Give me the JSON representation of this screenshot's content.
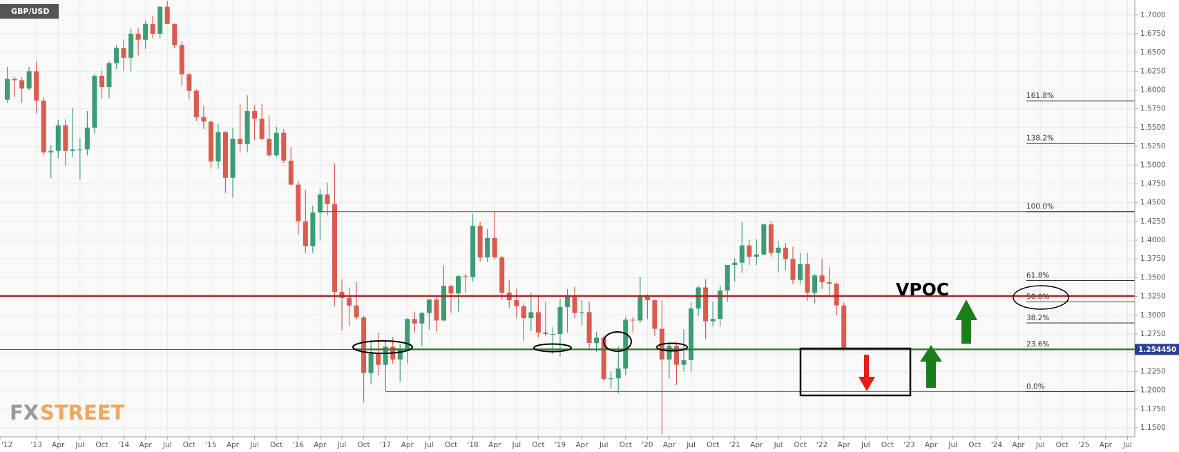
{
  "chart_data": {
    "type": "candlestick",
    "title": "GBP/USD",
    "watermark": {
      "first": "FX",
      "second": "STREET"
    },
    "x": [
      "2012-09",
      "2012-10",
      "2012-11",
      "2012-12",
      "2013-01",
      "2013-02",
      "2013-03",
      "2013-04",
      "2013-05",
      "2013-06",
      "2013-07",
      "2013-08",
      "2013-09",
      "2013-10",
      "2013-11",
      "2013-12",
      "2014-01",
      "2014-02",
      "2014-03",
      "2014-04",
      "2014-05",
      "2014-06",
      "2014-07",
      "2014-08",
      "2014-09",
      "2014-10",
      "2014-11",
      "2014-12",
      "2015-01",
      "2015-02",
      "2015-03",
      "2015-04",
      "2015-05",
      "2015-06",
      "2015-07",
      "2015-08",
      "2015-09",
      "2015-10",
      "2015-11",
      "2015-12",
      "2016-01",
      "2016-02",
      "2016-03",
      "2016-04",
      "2016-05",
      "2016-06",
      "2016-07",
      "2016-08",
      "2016-09",
      "2016-10",
      "2016-11",
      "2016-12",
      "2017-01",
      "2017-02",
      "2017-03",
      "2017-04",
      "2017-05",
      "2017-06",
      "2017-07",
      "2017-08",
      "2017-09",
      "2017-10",
      "2017-11",
      "2017-12",
      "2018-01",
      "2018-02",
      "2018-03",
      "2018-04",
      "2018-05",
      "2018-06",
      "2018-07",
      "2018-08",
      "2018-09",
      "2018-10",
      "2018-11",
      "2018-12",
      "2019-01",
      "2019-02",
      "2019-03",
      "2019-04",
      "2019-05",
      "2019-06",
      "2019-07",
      "2019-08",
      "2019-09",
      "2019-10",
      "2019-11",
      "2019-12",
      "2020-01",
      "2020-02",
      "2020-03",
      "2020-04",
      "2020-05",
      "2020-06",
      "2020-07",
      "2020-08",
      "2020-09",
      "2020-10",
      "2020-11",
      "2020-12",
      "2021-01",
      "2021-02",
      "2021-03",
      "2021-04",
      "2021-05",
      "2021-06",
      "2021-07",
      "2021-08",
      "2021-09",
      "2021-10",
      "2021-11",
      "2021-12",
      "2022-01",
      "2022-02",
      "2022-03",
      "2022-04"
    ],
    "open": [
      1.587,
      1.615,
      1.613,
      1.602,
      1.625,
      1.586,
      1.517,
      1.519,
      1.553,
      1.519,
      1.521,
      1.521,
      1.55,
      1.619,
      1.604,
      1.636,
      1.656,
      1.643,
      1.675,
      1.667,
      1.688,
      1.675,
      1.711,
      1.688,
      1.66,
      1.621,
      1.599,
      1.564,
      1.558,
      1.505,
      1.544,
      1.483,
      1.535,
      1.528,
      1.572,
      1.562,
      1.535,
      1.513,
      1.543,
      1.506,
      1.474,
      1.425,
      1.392,
      1.437,
      1.461,
      1.448,
      1.331,
      1.323,
      1.313,
      1.297,
      1.223,
      1.249,
      1.234,
      1.258,
      1.241,
      1.255,
      1.295,
      1.289,
      1.303,
      1.321,
      1.293,
      1.339,
      1.329,
      1.352,
      1.351,
      1.419,
      1.377,
      1.403,
      1.377,
      1.33,
      1.32,
      1.312,
      1.296,
      1.304,
      1.277,
      1.275,
      1.275,
      1.311,
      1.326,
      1.303,
      1.304,
      1.263,
      1.27,
      1.215,
      1.216,
      1.229,
      1.294,
      1.293,
      1.326,
      1.32,
      1.282,
      1.241,
      1.259,
      1.234,
      1.24,
      1.309,
      1.337,
      1.292,
      1.295,
      1.333,
      1.367,
      1.37,
      1.393,
      1.378,
      1.381,
      1.421,
      1.383,
      1.39,
      1.375,
      1.347,
      1.368,
      1.33,
      1.353,
      1.344,
      1.342,
      1.313
    ],
    "high": [
      1.631,
      1.618,
      1.617,
      1.631,
      1.638,
      1.59,
      1.527,
      1.56,
      1.561,
      1.576,
      1.536,
      1.572,
      1.621,
      1.626,
      1.638,
      1.66,
      1.667,
      1.682,
      1.682,
      1.692,
      1.699,
      1.712,
      1.719,
      1.689,
      1.665,
      1.623,
      1.601,
      1.579,
      1.559,
      1.555,
      1.545,
      1.55,
      1.582,
      1.593,
      1.58,
      1.582,
      1.566,
      1.551,
      1.548,
      1.524,
      1.479,
      1.467,
      1.446,
      1.468,
      1.477,
      1.502,
      1.348,
      1.337,
      1.345,
      1.299,
      1.267,
      1.277,
      1.267,
      1.271,
      1.262,
      1.296,
      1.305,
      1.304,
      1.321,
      1.327,
      1.366,
      1.34,
      1.354,
      1.355,
      1.435,
      1.424,
      1.415,
      1.438,
      1.379,
      1.347,
      1.336,
      1.316,
      1.33,
      1.326,
      1.318,
      1.284,
      1.322,
      1.335,
      1.338,
      1.32,
      1.318,
      1.278,
      1.273,
      1.225,
      1.258,
      1.298,
      1.298,
      1.351,
      1.328,
      1.321,
      1.32,
      1.264,
      1.265,
      1.281,
      1.317,
      1.339,
      1.348,
      1.318,
      1.34,
      1.367,
      1.376,
      1.424,
      1.4,
      1.401,
      1.422,
      1.425,
      1.399,
      1.396,
      1.391,
      1.383,
      1.383,
      1.355,
      1.375,
      1.364,
      1.344,
      1.317
    ],
    "low": [
      1.583,
      1.591,
      1.583,
      1.6,
      1.569,
      1.513,
      1.483,
      1.509,
      1.499,
      1.511,
      1.481,
      1.513,
      1.542,
      1.589,
      1.589,
      1.628,
      1.625,
      1.625,
      1.646,
      1.655,
      1.669,
      1.669,
      1.688,
      1.656,
      1.605,
      1.588,
      1.559,
      1.548,
      1.495,
      1.495,
      1.463,
      1.457,
      1.517,
      1.517,
      1.533,
      1.533,
      1.511,
      1.511,
      1.503,
      1.473,
      1.408,
      1.383,
      1.383,
      1.4,
      1.433,
      1.312,
      1.28,
      1.286,
      1.294,
      1.184,
      1.208,
      1.22,
      1.199,
      1.235,
      1.211,
      1.236,
      1.277,
      1.259,
      1.281,
      1.278,
      1.292,
      1.303,
      1.304,
      1.33,
      1.345,
      1.371,
      1.371,
      1.374,
      1.32,
      1.31,
      1.296,
      1.266,
      1.279,
      1.27,
      1.272,
      1.248,
      1.245,
      1.277,
      1.296,
      1.287,
      1.256,
      1.251,
      1.212,
      1.202,
      1.196,
      1.22,
      1.277,
      1.29,
      1.295,
      1.272,
      1.141,
      1.216,
      1.207,
      1.225,
      1.225,
      1.299,
      1.268,
      1.285,
      1.285,
      1.318,
      1.345,
      1.356,
      1.367,
      1.367,
      1.38,
      1.378,
      1.357,
      1.36,
      1.341,
      1.341,
      1.319,
      1.316,
      1.335,
      1.327,
      1.3,
      1.252
    ],
    "close": [
      1.615,
      1.613,
      1.602,
      1.625,
      1.586,
      1.517,
      1.519,
      1.553,
      1.519,
      1.521,
      1.521,
      1.55,
      1.619,
      1.604,
      1.636,
      1.656,
      1.643,
      1.675,
      1.667,
      1.688,
      1.675,
      1.711,
      1.688,
      1.66,
      1.621,
      1.599,
      1.564,
      1.558,
      1.505,
      1.544,
      1.483,
      1.535,
      1.528,
      1.572,
      1.562,
      1.535,
      1.513,
      1.543,
      1.506,
      1.474,
      1.425,
      1.392,
      1.437,
      1.461,
      1.448,
      1.331,
      1.323,
      1.313,
      1.297,
      1.223,
      1.249,
      1.234,
      1.258,
      1.241,
      1.255,
      1.295,
      1.289,
      1.303,
      1.321,
      1.293,
      1.339,
      1.329,
      1.352,
      1.351,
      1.419,
      1.377,
      1.403,
      1.377,
      1.33,
      1.32,
      1.312,
      1.296,
      1.304,
      1.277,
      1.275,
      1.275,
      1.311,
      1.326,
      1.303,
      1.304,
      1.263,
      1.27,
      1.215,
      1.216,
      1.229,
      1.294,
      1.293,
      1.326,
      1.32,
      1.282,
      1.241,
      1.259,
      1.234,
      1.24,
      1.309,
      1.337,
      1.292,
      1.295,
      1.333,
      1.367,
      1.37,
      1.393,
      1.378,
      1.381,
      1.421,
      1.383,
      1.39,
      1.375,
      1.347,
      1.368,
      1.33,
      1.353,
      1.344,
      1.342,
      1.313,
      1.2545
    ],
    "up_color": "#3c9c74",
    "down_color": "#dc5b4d",
    "xlim": [
      "2012-08",
      "2025-08"
    ],
    "xticks": [
      {
        "value": "2012-08",
        "label": "'12"
      },
      {
        "value": "2013-01",
        "label": "'13"
      },
      {
        "value": "2013-04",
        "label": "Apr"
      },
      {
        "value": "2013-07",
        "label": "Jul"
      },
      {
        "value": "2013-10",
        "label": "Oct"
      },
      {
        "value": "2014-01",
        "label": "'14"
      },
      {
        "value": "2014-04",
        "label": "Apr"
      },
      {
        "value": "2014-07",
        "label": "Jul"
      },
      {
        "value": "2014-10",
        "label": "Oct"
      },
      {
        "value": "2015-01",
        "label": "'15"
      },
      {
        "value": "2015-04",
        "label": "Apr"
      },
      {
        "value": "2015-07",
        "label": "Jul"
      },
      {
        "value": "2015-10",
        "label": "Oct"
      },
      {
        "value": "2016-01",
        "label": "'16"
      },
      {
        "value": "2016-04",
        "label": "Apr"
      },
      {
        "value": "2016-07",
        "label": "Jul"
      },
      {
        "value": "2016-10",
        "label": "Oct"
      },
      {
        "value": "2017-01",
        "label": "'17"
      },
      {
        "value": "2017-04",
        "label": "Apr"
      },
      {
        "value": "2017-07",
        "label": "Jul"
      },
      {
        "value": "2017-10",
        "label": "Oct"
      },
      {
        "value": "2018-01",
        "label": "'18"
      },
      {
        "value": "2018-04",
        "label": "Apr"
      },
      {
        "value": "2018-07",
        "label": "Jul"
      },
      {
        "value": "2018-10",
        "label": "Oct"
      },
      {
        "value": "2019-01",
        "label": "'19"
      },
      {
        "value": "2019-04",
        "label": "Apr"
      },
      {
        "value": "2019-07",
        "label": "Jul"
      },
      {
        "value": "2019-10",
        "label": "Oct"
      },
      {
        "value": "2020-01",
        "label": "'20"
      },
      {
        "value": "2020-04",
        "label": "Apr"
      },
      {
        "value": "2020-07",
        "label": "Jul"
      },
      {
        "value": "2020-10",
        "label": "Oct"
      },
      {
        "value": "2021-01",
        "label": "'21"
      },
      {
        "value": "2021-04",
        "label": "Apr"
      },
      {
        "value": "2021-07",
        "label": "Jul"
      },
      {
        "value": "2021-10",
        "label": "Oct"
      },
      {
        "value": "2022-01",
        "label": "'22"
      },
      {
        "value": "2022-04",
        "label": "Apr"
      },
      {
        "value": "2022-07",
        "label": "Jul"
      },
      {
        "value": "2022-10",
        "label": "Oct"
      },
      {
        "value": "2023-01",
        "label": "'23"
      },
      {
        "value": "2023-04",
        "label": "Apr"
      },
      {
        "value": "2023-07",
        "label": "Jul"
      },
      {
        "value": "2023-10",
        "label": "Oct"
      },
      {
        "value": "2024-01",
        "label": "'24"
      },
      {
        "value": "2024-04",
        "label": "Apr"
      },
      {
        "value": "2024-07",
        "label": "Jul"
      },
      {
        "value": "2024-10",
        "label": "Oct"
      },
      {
        "value": "2025-01",
        "label": "'25"
      },
      {
        "value": "2025-04",
        "label": "Apr"
      },
      {
        "value": "2025-07",
        "label": "Jul"
      }
    ],
    "ylim": [
      1.138,
      1.72
    ],
    "yticks": [
      {
        "value": 1.15,
        "label": "1.1500"
      },
      {
        "value": 1.175,
        "label": "1.1750"
      },
      {
        "value": 1.2,
        "label": "1.2000"
      },
      {
        "value": 1.225,
        "label": "1.2250"
      },
      {
        "value": 1.25,
        "label": "1.2500"
      },
      {
        "value": 1.275,
        "label": "1.2750"
      },
      {
        "value": 1.3,
        "label": "1.3000"
      },
      {
        "value": 1.325,
        "label": "1.3250"
      },
      {
        "value": 1.35,
        "label": "1.3500"
      },
      {
        "value": 1.375,
        "label": "1.3750"
      },
      {
        "value": 1.4,
        "label": "1.4000"
      },
      {
        "value": 1.425,
        "label": "1.4250"
      },
      {
        "value": 1.45,
        "label": "1.4500"
      },
      {
        "value": 1.475,
        "label": "1.4750"
      },
      {
        "value": 1.5,
        "label": "1.5000"
      },
      {
        "value": 1.525,
        "label": "1.5250"
      },
      {
        "value": 1.55,
        "label": "1.5500"
      },
      {
        "value": 1.575,
        "label": "1.5750"
      },
      {
        "value": 1.6,
        "label": "1.6000"
      },
      {
        "value": 1.625,
        "label": "1.6250"
      },
      {
        "value": 1.65,
        "label": "1.6500"
      },
      {
        "value": 1.675,
        "label": "1.6750"
      },
      {
        "value": 1.7,
        "label": "1.7000"
      }
    ],
    "grid": true,
    "fibonacci_color": "#333333",
    "fibonacci": [
      {
        "label": "161.8%",
        "value": 1.5857
      },
      {
        "label": "138.2%",
        "value": 1.5292
      },
      {
        "label": "100.0%",
        "value": 1.438,
        "from": "2016-04",
        "color": "#a3302a"
      },
      {
        "label": "61.8%",
        "value": 1.3463
      },
      {
        "label": "50.0%",
        "value": 1.3178
      },
      {
        "label": "38.2%",
        "value": 1.2897
      },
      {
        "label": "23.6%",
        "value": 1.2547
      },
      {
        "label": "0.0%",
        "value": 1.1982,
        "from": "2017-01",
        "color": "#3d8b3d"
      }
    ],
    "vpoc": {
      "label": "VPOC",
      "value": 1.3256,
      "color": "#b22222"
    },
    "support": {
      "value": 1.2545,
      "color": "#2e7d32"
    },
    "last_price": {
      "value": 1.25445,
      "label": "1.254450",
      "color": "#2a3f8f"
    }
  }
}
